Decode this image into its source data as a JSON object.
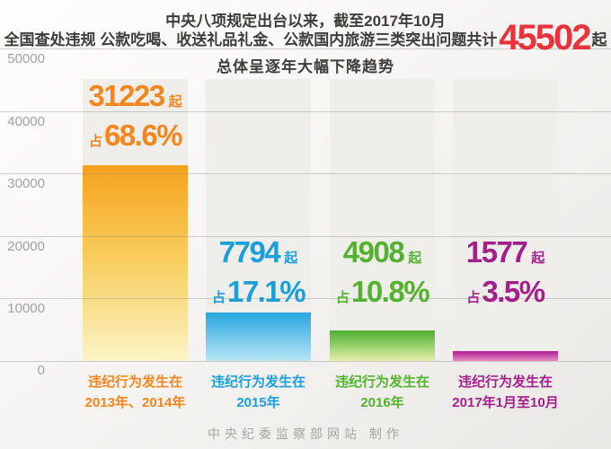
{
  "title": {
    "line1": "中央八项规定出台以来，截至2017年10月",
    "line2_prefix": "全国查处违规 公款吃喝、收送礼品礼金、公款国内旅游三类突出问题共计",
    "total": "45502",
    "total_unit": "起",
    "line3": "总体呈逐年大幅下降趋势"
  },
  "y_axis": {
    "ticks": [
      "50000",
      "40000",
      "30000",
      "20000",
      "10000",
      "0"
    ]
  },
  "bars": [
    {
      "value": "31223",
      "unit": "起",
      "zhan": "占",
      "percent": "68.6%",
      "cat_line1": "违纪行为发生在",
      "cat_line2": "2013年、2014年",
      "color": "#f5861d"
    },
    {
      "value": "7794",
      "unit": "起",
      "zhan": "占",
      "percent": "17.1%",
      "cat_line1": "违纪行为发生在",
      "cat_line2": "2015年",
      "color": "#1a9fdb"
    },
    {
      "value": "4908",
      "unit": "起",
      "zhan": "占",
      "percent": "10.8%",
      "cat_line1": "违纪行为发生在",
      "cat_line2": "2016年",
      "color": "#54b32e"
    },
    {
      "value": "1577",
      "unit": "起",
      "zhan": "占",
      "percent": "3.5%",
      "cat_line1": "违纪行为发生在",
      "cat_line2": "2017年1月至10月",
      "color": "#a31f8c"
    }
  ],
  "footer": {
    "credit": "中央纪委监察部网站 制作"
  },
  "colors": {
    "accent_red": "#e8333b",
    "orange": "#f5861d",
    "blue": "#1a9fdb",
    "green": "#54b32e",
    "magenta": "#a31f8c",
    "grid": "#96938f",
    "track": "#efeeeb"
  },
  "chart_data": {
    "type": "bar",
    "title": "中央八项规定出台以来，截至2017年10月，全国查处违规公款吃喝、收送礼品礼金、公款国内旅游三类突出问题共计45502起，总体呈逐年大幅下降趋势",
    "total": 45502,
    "unit": "起",
    "categories": [
      "违纪行为发生在2013年、2014年",
      "违纪行为发生在2015年",
      "违纪行为发生在2016年",
      "违纪行为发生在2017年1月至10月"
    ],
    "values": [
      31223,
      7794,
      4908,
      1577
    ],
    "percentages": [
      68.6,
      17.1,
      10.8,
      3.5
    ],
    "xlabel": "",
    "ylabel": "",
    "ylim": [
      0,
      50000
    ],
    "yticks": [
      0,
      10000,
      20000,
      30000,
      40000,
      50000
    ],
    "grid": true,
    "legend": false,
    "series_colors": [
      "#f5861d",
      "#1a9fdb",
      "#54b32e",
      "#a31f8c"
    ],
    "source": "中央纪委监察部网站 制作"
  }
}
